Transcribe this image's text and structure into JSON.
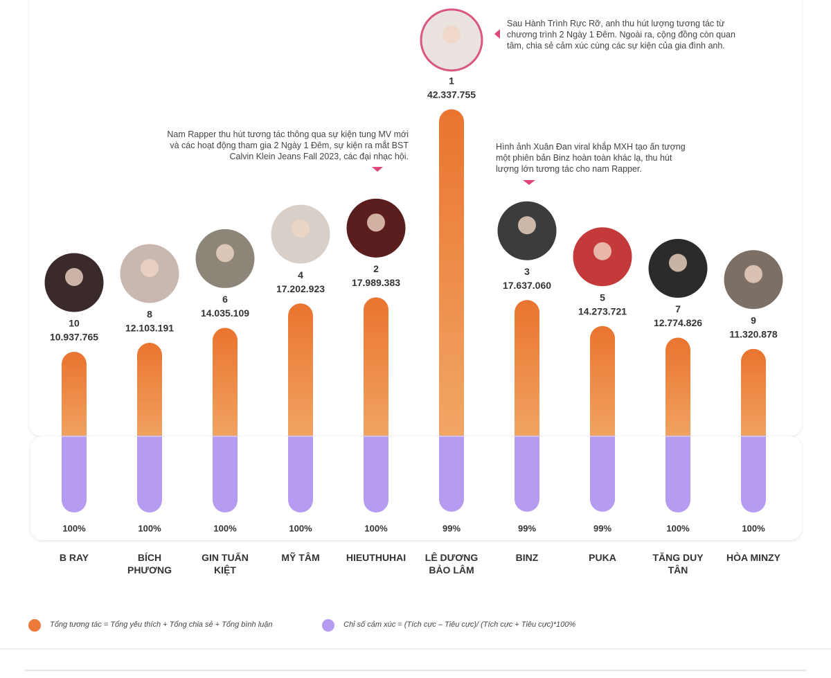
{
  "chart_data": {
    "type": "bar",
    "categories": [
      "B RAY",
      "BÍCH PHƯƠNG",
      "GIN TUẤN KIỆT",
      "MỸ TÂM",
      "HIEUTHUHAI",
      "LÊ DƯƠNG BẢO LÂM",
      "BINZ",
      "PUKA",
      "TĂNG DUY TÂN",
      "HÒA MINZY"
    ],
    "ranks": [
      10,
      8,
      6,
      4,
      2,
      1,
      3,
      5,
      7,
      9
    ],
    "series": [
      {
        "name": "Tổng tương tác = Tổng yêu thích + Tổng chia sẻ + Tổng bình luận",
        "color": "#ec7a3a",
        "values": [
          10937765,
          12103191,
          14035109,
          17202923,
          17989383,
          42337755,
          17637060,
          14273721,
          12774826,
          11320878
        ],
        "value_labels": [
          "10.937.765",
          "12.103.191",
          "14.035.109",
          "17.202.923",
          "17.989.383",
          "42.337.755",
          "17.637.060",
          "14.273.721",
          "12.774.826",
          "11.320.878"
        ]
      },
      {
        "name": "Chỉ số cảm xúc = (Tích cực – Tiêu cực)/ (Tích cực + Tiêu cực)*100%",
        "color": "#b59cf2",
        "axis": "y2",
        "values": [
          100,
          100,
          100,
          100,
          100,
          99,
          99,
          99,
          100,
          100
        ],
        "value_labels": [
          "100%",
          "100%",
          "100%",
          "100%",
          "100%",
          "99%",
          "99%",
          "99%",
          "100%",
          "100%"
        ]
      }
    ],
    "ylim": [
      0,
      45000000
    ],
    "y2lim": [
      0,
      100
    ],
    "annotations": [
      "Sau Hành Trình Rực Rỡ, anh thu hút lượng tương tác từ chương trình 2 Ngày 1 Đêm. Ngoài ra, cộng đồng còn quan tâm, chia sẻ cảm xúc cùng các sự kiện của gia đình anh.",
      "Nam Rapper thu hút tương tác thông qua sự kiện tung MV mới và các hoạt động tham gia 2 Ngày 1 Đêm, sự kiện ra mắt BST Calvin Klein Jeans Fall 2023, các đại nhạc hội.",
      "Hình ảnh Xuân Đan viral khắp MXH tạo ấn tượng một phiên bản Binz hoàn toàn khác lạ, thu hút lượng lớn tương tác cho nam Rapper."
    ]
  }
}
